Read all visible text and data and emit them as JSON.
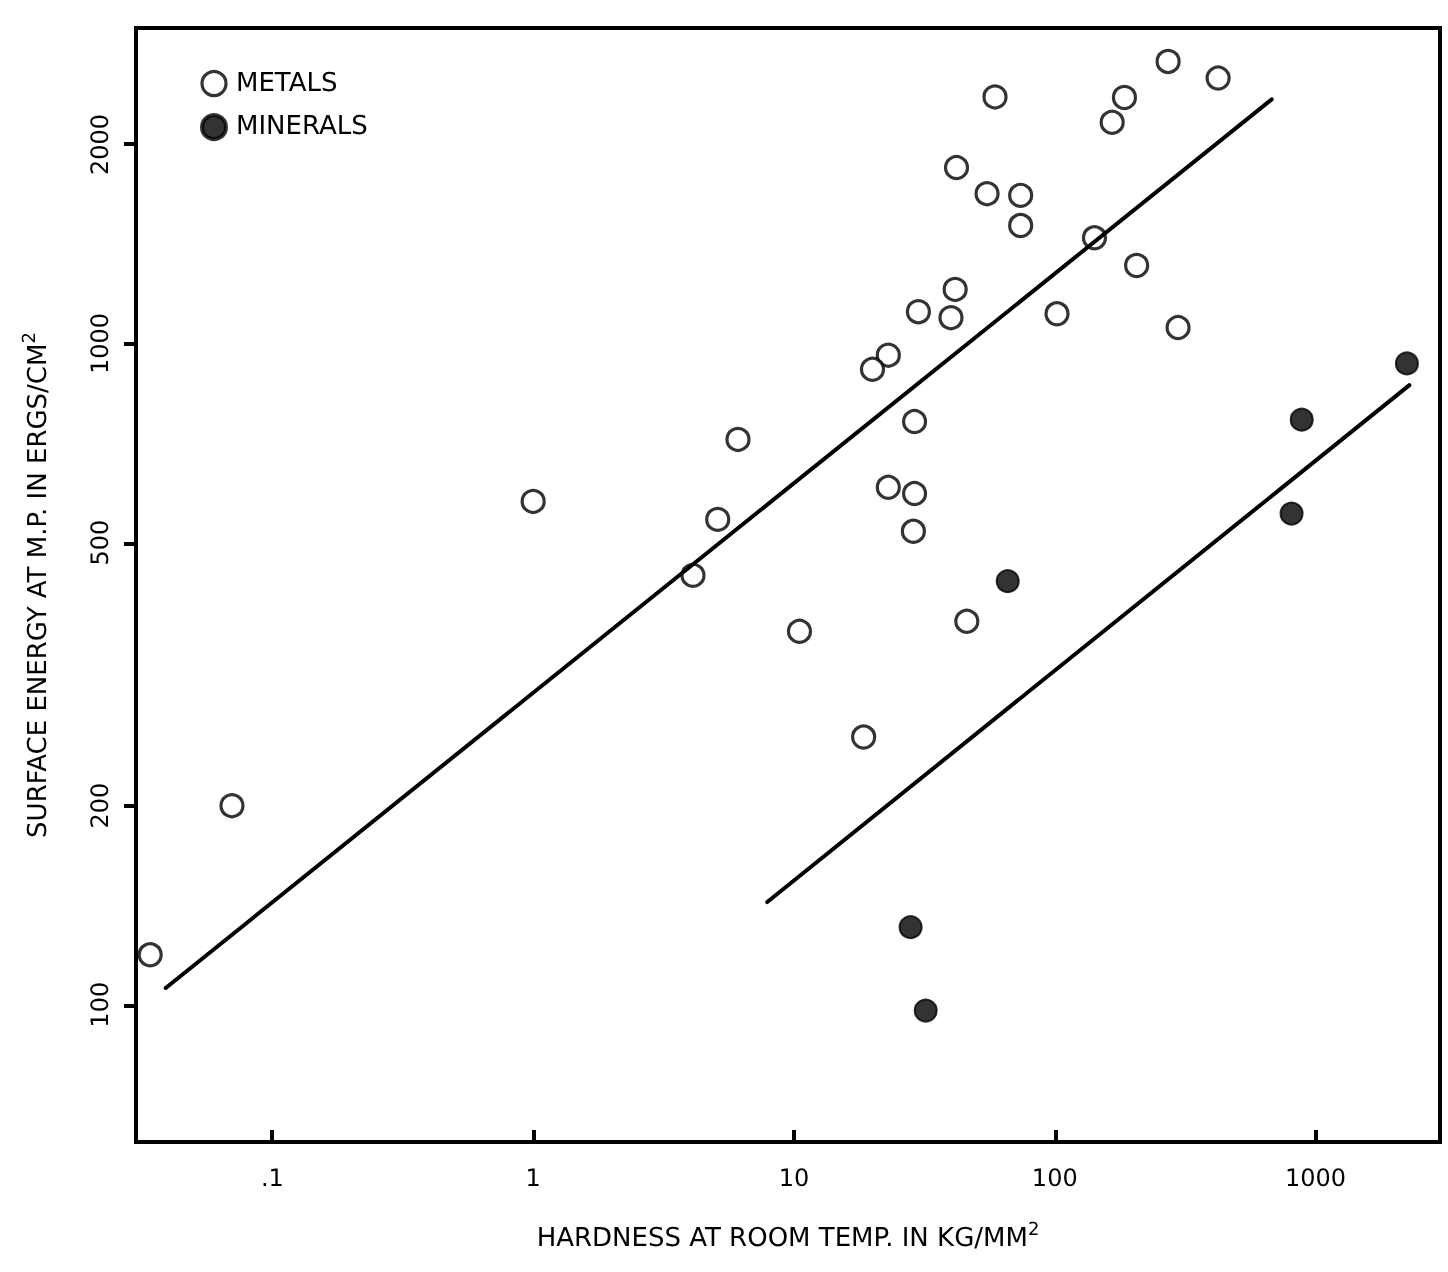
{
  "chart_data": {
    "type": "scatter",
    "xlabel": "HARDNESS AT ROOM TEMP. IN KG/MM$^{2}$",
    "ylabel": "SURFACE ENERGY AT M.P. IN ERGS/CM$^{2}$",
    "log": "xy",
    "xlim": [
      0.03,
      3000
    ],
    "ylim": [
      62,
      3000
    ],
    "xticks": [
      {
        "value": 0.1,
        "label": ".1"
      },
      1,
      10,
      100,
      1000
    ],
    "yticks": [
      100,
      200,
      500,
      1000,
      2000
    ],
    "grid": false,
    "legend": "top left",
    "marker": "circle",
    "series": [
      {
        "name": "METALS",
        "color": "#000000",
        "x": [
          0.034,
          0.07,
          1.0,
          4.1,
          5.1,
          6.1,
          10.5,
          18.5,
          46,
          59,
          272,
          423,
          185,
          166,
          42,
          55,
          74,
          74,
          142,
          206,
          41.5,
          40,
          30,
          102,
          297,
          23,
          20,
          29,
          23,
          29,
          28.7
        ],
        "values": [
          119,
          200,
          577,
          446,
          542,
          716,
          367,
          254,
          380,
          2360,
          2670,
          2520,
          2355,
          2160,
          1845,
          1685,
          1675,
          1508,
          1445,
          1312,
          1207,
          1094,
          1117,
          1109,
          1057,
          960,
          914,
          762,
          606,
          593,
          520
        ]
      },
      {
        "name": "MINERALS",
        "color": "#000000",
        "x": [
          66,
          885,
          2240,
          809,
          28,
          32
        ],
        "values": [
          437,
          767,
          933,
          553,
          131,
          98
        ]
      },
      {
        "type": "line",
        "color": "#000000",
        "marker": "none",
        "line_style": "solid",
        "x": [
          0.039,
          679
        ],
        "values": [
          106,
          2340
        ]
      },
      {
        "type": "line",
        "color": "#000000",
        "marker": "none",
        "line_style": "solid",
        "x": [
          7.9,
          2290
        ],
        "values": [
          143,
          865
        ]
      }
    ]
  }
}
